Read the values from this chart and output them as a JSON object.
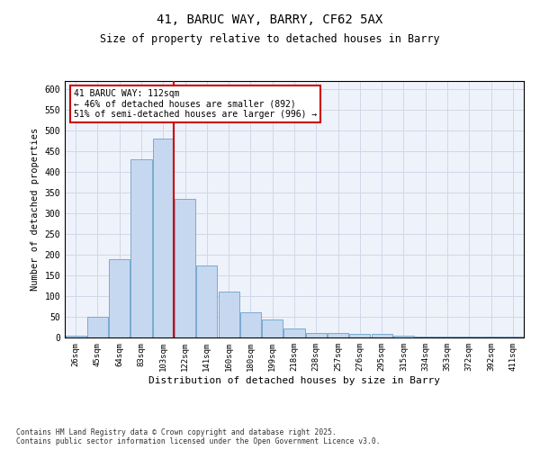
{
  "title1": "41, BARUC WAY, BARRY, CF62 5AX",
  "title2": "Size of property relative to detached houses in Barry",
  "xlabel": "Distribution of detached houses by size in Barry",
  "ylabel": "Number of detached properties",
  "categories": [
    "26sqm",
    "45sqm",
    "64sqm",
    "83sqm",
    "103sqm",
    "122sqm",
    "141sqm",
    "160sqm",
    "180sqm",
    "199sqm",
    "218sqm",
    "238sqm",
    "257sqm",
    "276sqm",
    "295sqm",
    "315sqm",
    "334sqm",
    "353sqm",
    "372sqm",
    "392sqm",
    "411sqm"
  ],
  "values": [
    5,
    50,
    190,
    430,
    480,
    335,
    175,
    110,
    62,
    43,
    22,
    10,
    10,
    8,
    8,
    5,
    3,
    2,
    2,
    3,
    2
  ],
  "bar_color": "#c5d8f0",
  "bar_edge_color": "#7aaad0",
  "grid_color": "#d0d8e8",
  "bg_color": "#eef2fa",
  "annotation_text": "41 BARUC WAY: 112sqm\n← 46% of detached houses are smaller (892)\n51% of semi-detached houses are larger (996) →",
  "annotation_box_color": "#ffffff",
  "annotation_box_edge": "#cc0000",
  "property_line_color": "#cc0000",
  "property_line_x": 4.5,
  "ylim": [
    0,
    620
  ],
  "yticks": [
    0,
    50,
    100,
    150,
    200,
    250,
    300,
    350,
    400,
    450,
    500,
    550,
    600
  ],
  "footer": "Contains HM Land Registry data © Crown copyright and database right 2025.\nContains public sector information licensed under the Open Government Licence v3.0."
}
